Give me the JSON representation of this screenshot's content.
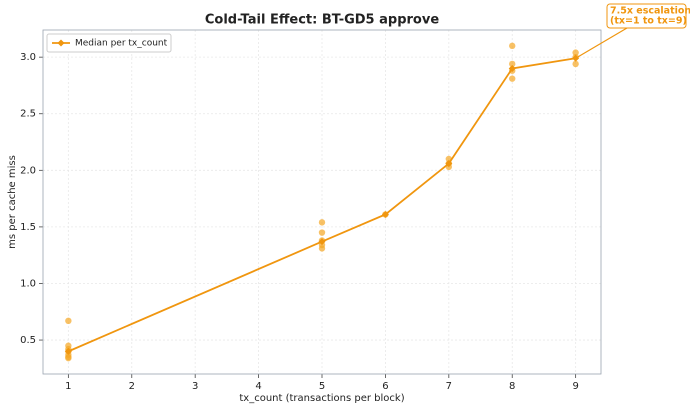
{
  "chart_data": {
    "type": "line",
    "title": "Cold-Tail Effect: BT-GD5 approve",
    "x_label": "tx_count (transactions per block)",
    "y_label": "ms per cache miss",
    "xlim": [
      0.6,
      9.4
    ],
    "ylim": [
      0.2,
      3.24
    ],
    "xticks": [
      1,
      2,
      3,
      4,
      5,
      6,
      7,
      8,
      9
    ],
    "yticks": [
      0.5,
      {
        "value": 1,
        "label": "1.0"
      },
      1.5,
      {
        "value": 2,
        "label": "2.0"
      },
      2.5,
      {
        "value": 3,
        "label": "3.0"
      }
    ],
    "grid": true,
    "legend": "upper left",
    "series": [
      {
        "name": "Median per tx_count",
        "color": "#f0960f",
        "x": [
          1,
          5,
          6,
          7,
          8,
          9
        ],
        "values": [
          0.4,
          1.37,
          1.61,
          2.06,
          2.9,
          2.99
        ]
      }
    ],
    "points": {
      "color": "#f5a623",
      "x": [
        1,
        1,
        1,
        1,
        1,
        1,
        1,
        5,
        5,
        5,
        5,
        5,
        6,
        7,
        7,
        7,
        8,
        8,
        8,
        8,
        9,
        9,
        9
      ],
      "y": [
        0.67,
        0.45,
        0.42,
        0.4,
        0.37,
        0.35,
        0.34,
        1.54,
        1.45,
        1.38,
        1.34,
        1.31,
        1.61,
        2.1,
        2.06,
        2.03,
        3.1,
        2.94,
        2.88,
        2.81,
        3.04,
        3.0,
        2.94
      ]
    },
    "annotation": {
      "lines": [
        "7.5x escalation",
        "(tx=1 to tx=9)"
      ],
      "x": 9,
      "y": 2.99
    }
  }
}
